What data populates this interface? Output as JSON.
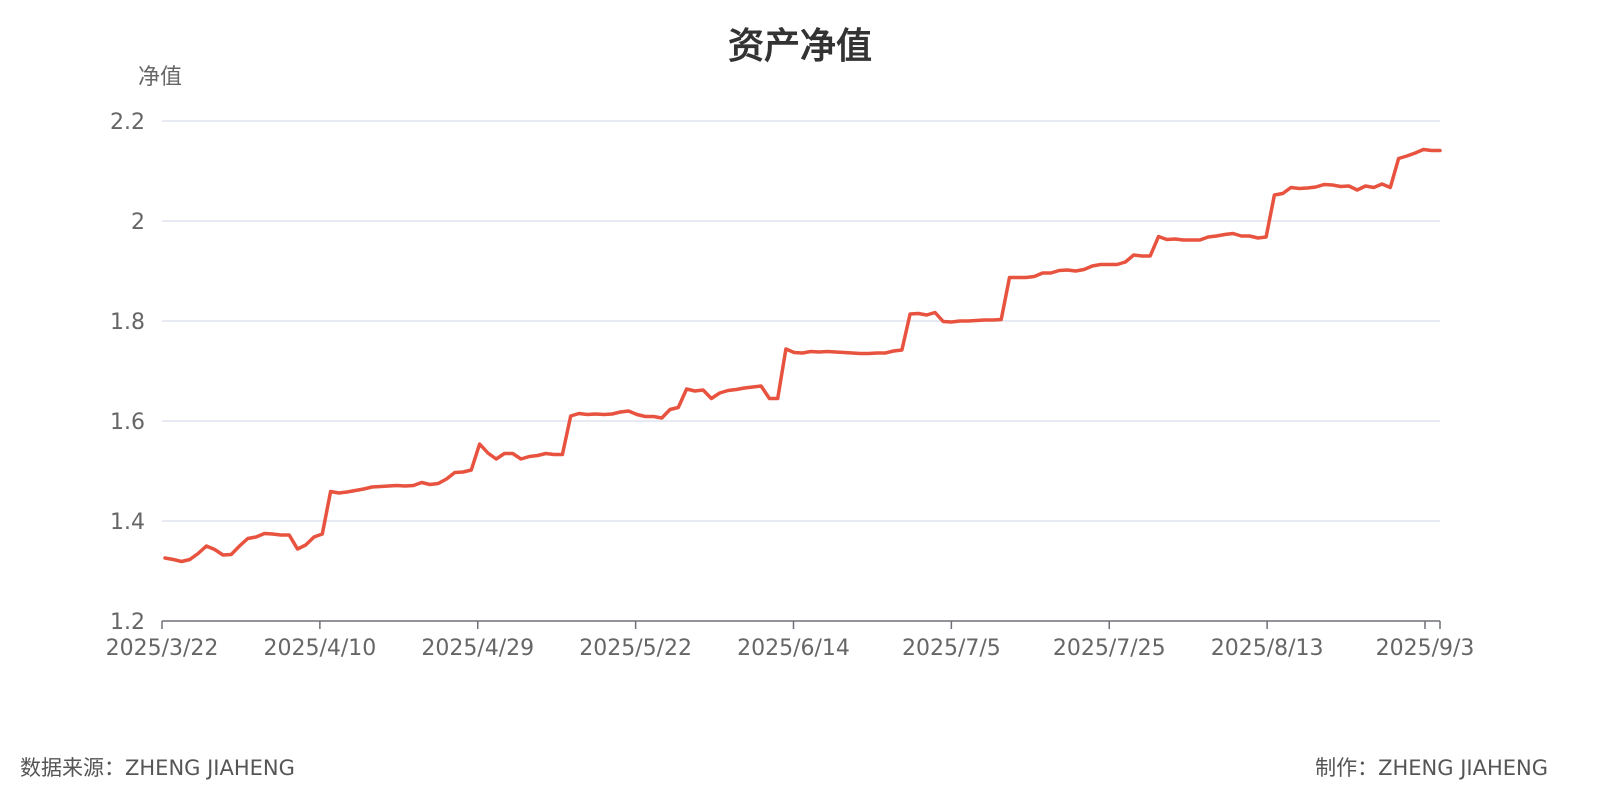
{
  "footer": {
    "source": "数据来源：ZHENG JIAHENG",
    "author": "制作：ZHENG JIAHENG"
  },
  "chart_data": {
    "type": "line",
    "title": "资产净值",
    "xlabel": "",
    "ylabel": "净值",
    "ylim": [
      1.2,
      2.2
    ],
    "yticks": [
      "1.2",
      "1.4",
      "1.6",
      "1.8",
      "2",
      "2.2"
    ],
    "xticks": [
      "2025/3/22",
      "2025/4/10",
      "2025/4/29",
      "2025/5/22",
      "2025/6/14",
      "2025/7/5",
      "2025/7/25",
      "2025/8/13",
      "2025/9/3"
    ],
    "grid": true,
    "color": "#e8533f",
    "series": [
      {
        "values": [
          1.326,
          1.323,
          1.319,
          1.323,
          1.335,
          1.35,
          1.343,
          1.332,
          1.333,
          1.35,
          1.365,
          1.368,
          1.375,
          1.374,
          1.372,
          1.372,
          1.344,
          1.352,
          1.368,
          1.374,
          1.459,
          1.456,
          1.458,
          1.461,
          1.464,
          1.468,
          1.469,
          1.47,
          1.471,
          1.47,
          1.471,
          1.477,
          1.473,
          1.475,
          1.484,
          1.497,
          1.498,
          1.502,
          1.554,
          1.536,
          1.524,
          1.535,
          1.535,
          1.524,
          1.529,
          1.531,
          1.535,
          1.533,
          1.533,
          1.61,
          1.615,
          1.613,
          1.614,
          1.613,
          1.614,
          1.618,
          1.62,
          1.613,
          1.609,
          1.609,
          1.606,
          1.623,
          1.627,
          1.664,
          1.66,
          1.662,
          1.645,
          1.656,
          1.661,
          1.663,
          1.666,
          1.668,
          1.67,
          1.645,
          1.645,
          1.744,
          1.737,
          1.736,
          1.739,
          1.738,
          1.739,
          1.738,
          1.737,
          1.736,
          1.735,
          1.735,
          1.736,
          1.736,
          1.74,
          1.742,
          1.814,
          1.815,
          1.812,
          1.817,
          1.799,
          1.798,
          1.8,
          1.8,
          1.801,
          1.802,
          1.802,
          1.803,
          1.887,
          1.887,
          1.887,
          1.889,
          1.896,
          1.896,
          1.901,
          1.902,
          1.9,
          1.903,
          1.91,
          1.913,
          1.913,
          1.913,
          1.918,
          1.932,
          1.93,
          1.93,
          1.969,
          1.963,
          1.964,
          1.962,
          1.962,
          1.962,
          1.968,
          1.97,
          1.973,
          1.975,
          1.97,
          1.97,
          1.966,
          1.968,
          2.052,
          2.055,
          2.067,
          2.065,
          2.066,
          2.068,
          2.073,
          2.072,
          2.069,
          2.07,
          2.062,
          2.07,
          2.067,
          2.074,
          2.067,
          2.125,
          2.13,
          2.136,
          2.143,
          2.141,
          2.141
        ]
      }
    ]
  }
}
